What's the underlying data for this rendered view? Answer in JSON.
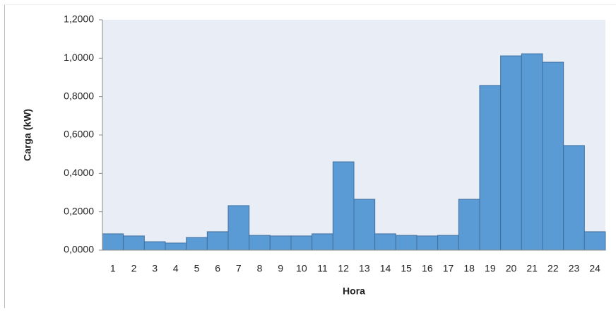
{
  "chart_data": {
    "type": "bar",
    "x_label": "Hora",
    "y_label": "Carga (kW)",
    "categories": [
      "1",
      "2",
      "3",
      "4",
      "5",
      "6",
      "7",
      "8",
      "9",
      "10",
      "11",
      "12",
      "13",
      "14",
      "15",
      "16",
      "17",
      "18",
      "19",
      "20",
      "21",
      "22",
      "23",
      "24"
    ],
    "values": [
      0.085,
      0.074,
      0.044,
      0.037,
      0.066,
      0.096,
      0.232,
      0.077,
      0.074,
      0.074,
      0.085,
      0.46,
      0.265,
      0.085,
      0.077,
      0.074,
      0.077,
      0.265,
      0.858,
      1.012,
      1.023,
      0.979,
      0.545,
      0.096
    ],
    "color": "#5b9bd5",
    "edge_color": "#3f6f9f",
    "plot_background": "#e9edf5",
    "ylim": [
      0,
      1.2
    ],
    "yticks": [
      {
        "value": 0,
        "label": "0,0000"
      },
      {
        "value": 0.2,
        "label": "0,2000"
      },
      {
        "value": 0.4,
        "label": "0,4000"
      },
      {
        "value": 0.6,
        "label": "0,6000"
      },
      {
        "value": 0.8,
        "label": "0,8000"
      },
      {
        "value": 1.0,
        "label": "1,0000"
      },
      {
        "value": 1.2,
        "label": "1,2000"
      }
    ],
    "grid": false
  }
}
